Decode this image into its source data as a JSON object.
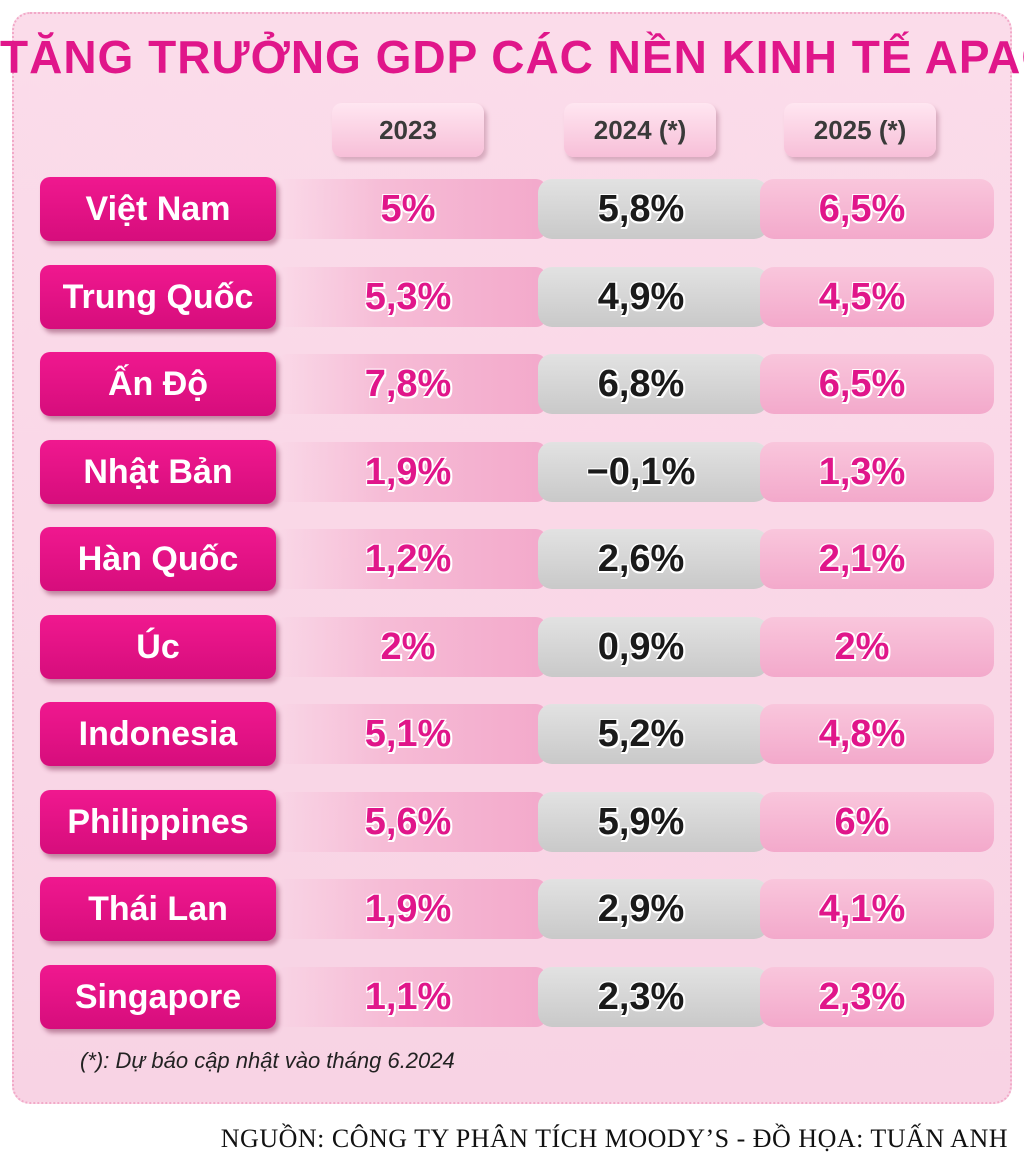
{
  "chart_data": {
    "type": "table",
    "title": "TĂNG TRƯỞNG GDP CÁC NỀN KINH TẾ APAC",
    "columns": [
      "2023",
      "2024 (*)",
      "2025 (*)"
    ],
    "rows": [
      {
        "country": "Việt Nam",
        "values": [
          "5%",
          "5,8%",
          "6,5%"
        ]
      },
      {
        "country": "Trung Quốc",
        "values": [
          "5,3%",
          "4,9%",
          "4,5%"
        ]
      },
      {
        "country": "Ấn Độ",
        "values": [
          "7,8%",
          "6,8%",
          "6,5%"
        ]
      },
      {
        "country": "Nhật Bản",
        "values": [
          "1,9%",
          "−0,1%",
          "1,3%"
        ]
      },
      {
        "country": "Hàn Quốc",
        "values": [
          "1,2%",
          "2,6%",
          "2,1%"
        ]
      },
      {
        "country": "Úc",
        "values": [
          "2%",
          "0,9%",
          "2%"
        ]
      },
      {
        "country": "Indonesia",
        "values": [
          "5,1%",
          "5,2%",
          "4,8%"
        ]
      },
      {
        "country": "Philippines",
        "values": [
          "5,6%",
          "5,9%",
          "6%"
        ]
      },
      {
        "country": "Thái Lan",
        "values": [
          "1,9%",
          "2,9%",
          "4,1%"
        ]
      },
      {
        "country": "Singapore",
        "values": [
          "1,1%",
          "2,3%",
          "2,3%"
        ]
      }
    ],
    "footnote": "(*): Dự báo cập nhật vào tháng 6.2024",
    "source": "NGUỒN: CÔNG TY PHÂN TÍCH MOODY’S - ĐỒ HỌA: TUẤN ANH"
  },
  "colors": {
    "accent": "#e0168a",
    "country_tag": "#d60d7c",
    "panel": "#fbdcea",
    "grey_column": "#d0d0d0"
  }
}
